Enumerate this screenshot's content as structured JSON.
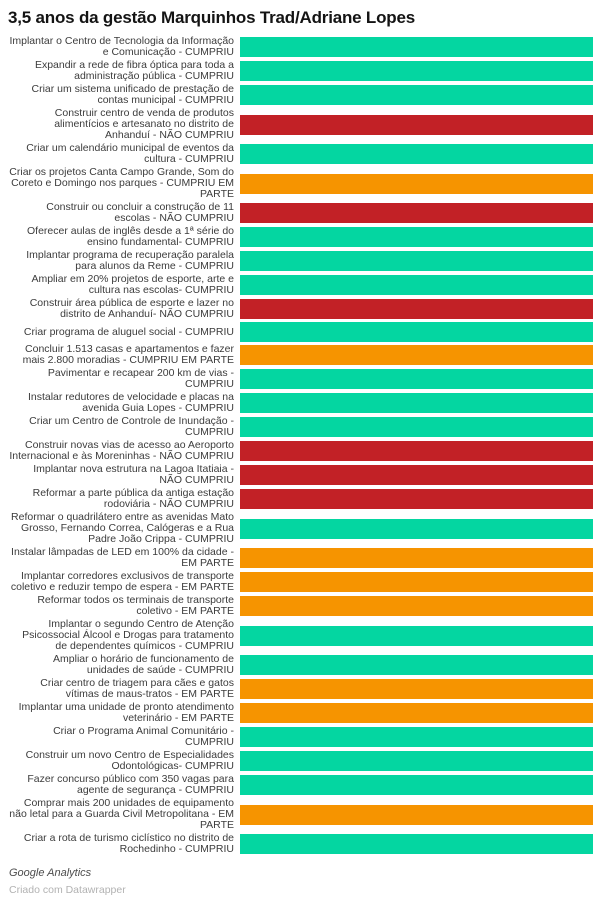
{
  "title": "3,5 anos da gestão Marquinhos Trad/Adriane Lopes",
  "footer": {
    "byline": "Google Analytics",
    "credit": "Criado com Datawrapper"
  },
  "status_colors": {
    "cumpriu": "#04d6a1",
    "nao_cumpriu": "#c22126",
    "em_parte": "#f69400"
  },
  "chart_data": {
    "type": "bar",
    "orientation": "horizontal",
    "title": "3,5 anos da gestão Marquinhos Trad/Adriane Lopes",
    "value_encoding": "all 32 bars span the full axis width; bar color encodes the status stated at the end of each label (green = CUMPRIU, red = NÃO CUMPRIU, orange = EM PARTE / CUMPRIU EM PARTE)",
    "legend_position": "none",
    "grid": false,
    "items": [
      {
        "label": "Implantar o Centro de Tecnologia da Informação e Comunicação - CUMPRIU",
        "status": "cumpriu",
        "value": 1
      },
      {
        "label": "Expandir a rede de fibra óptica para toda a administração pública - CUMPRIU",
        "status": "cumpriu",
        "value": 1
      },
      {
        "label": "Criar um sistema unificado de prestação de contas municipal - CUMPRIU",
        "status": "cumpriu",
        "value": 1
      },
      {
        "label": "Construir centro de venda de produtos alimentícios e artesanato no distrito de Anhanduí - NÃO CUMPRIU",
        "status": "nao_cumpriu",
        "value": 1
      },
      {
        "label": "Criar um calendário municipal de eventos da cultura - CUMPRIU",
        "status": "cumpriu",
        "value": 1
      },
      {
        "label": "Criar os projetos Canta Campo Grande, Som do Coreto e Domingo nos parques - CUMPRIU EM PARTE",
        "status": "em_parte",
        "value": 1
      },
      {
        "label": "Construir ou concluir a construção de 11 escolas - NÃO CUMPRIU",
        "status": "nao_cumpriu",
        "value": 1
      },
      {
        "label": "Oferecer aulas de inglês desde a 1ª série do ensino fundamental- CUMPRIU",
        "status": "cumpriu",
        "value": 1
      },
      {
        "label": "Implantar programa de recuperação paralela para alunos da Reme - CUMPRIU",
        "status": "cumpriu",
        "value": 1
      },
      {
        "label": "Ampliar em 20% projetos de esporte, arte e cultura nas escolas- CUMPRIU",
        "status": "cumpriu",
        "value": 1
      },
      {
        "label": "Construir área pública de esporte e lazer no distrito de Anhanduí- NÃO CUMPRIU",
        "status": "nao_cumpriu",
        "value": 1
      },
      {
        "label": "Criar programa de aluguel social - CUMPRIU",
        "status": "cumpriu",
        "value": 1
      },
      {
        "label": "Concluir 1.513 casas e apartamentos e fazer mais 2.800 moradias - CUMPRIU EM PARTE",
        "status": "em_parte",
        "value": 1
      },
      {
        "label": "Pavimentar e recapear 200 km de vias - CUMPRIU",
        "status": "cumpriu",
        "value": 1
      },
      {
        "label": "Instalar redutores de velocidade e placas na avenida Guia Lopes - CUMPRIU",
        "status": "cumpriu",
        "value": 1
      },
      {
        "label": "Criar um Centro de Controle de Inundação - CUMPRIU",
        "status": "cumpriu",
        "value": 1
      },
      {
        "label": "Construir novas vias de acesso ao Aeroporto Internacional e às Moreninhas - NÃO CUMPRIU",
        "status": "nao_cumpriu",
        "value": 1
      },
      {
        "label": "Implantar nova estrutura na Lagoa Itatiaia - NÃO CUMPRIU",
        "status": "nao_cumpriu",
        "value": 1
      },
      {
        "label": "Reformar a parte pública da antiga estação rodoviária - NÃO CUMPRIU",
        "status": "nao_cumpriu",
        "value": 1
      },
      {
        "label": "Reformar o quadrilátero entre as avenidas Mato Grosso, Fernando Correa, Calógeras e a Rua Padre João Crippa - CUMPRIU",
        "status": "cumpriu",
        "value": 1
      },
      {
        "label": "Instalar lâmpadas de LED em 100% da cidade - EM PARTE",
        "status": "em_parte",
        "value": 1
      },
      {
        "label": "Implantar corredores exclusivos de transporte coletivo e reduzir tempo de espera - EM PARTE",
        "status": "em_parte",
        "value": 1
      },
      {
        "label": "Reformar todos os terminais de transporte coletivo - EM PARTE",
        "status": "em_parte",
        "value": 1
      },
      {
        "label": "Implantar o segundo Centro de Atenção Psicossocial Álcool e Drogas para tratamento de dependentes químicos - CUMPRIU",
        "status": "cumpriu",
        "value": 1
      },
      {
        "label": "Ampliar o horário de funcionamento de unidades de saúde - CUMPRIU",
        "status": "cumpriu",
        "value": 1
      },
      {
        "label": "Criar centro de triagem para cães e gatos vítimas de maus-tratos - EM PARTE",
        "status": "em_parte",
        "value": 1
      },
      {
        "label": "Implantar uma unidade de pronto atendimento veterinário - EM PARTE",
        "status": "em_parte",
        "value": 1
      },
      {
        "label": "Criar o Programa Animal Comunitário - CUMPRIU",
        "status": "cumpriu",
        "value": 1
      },
      {
        "label": "Construir um novo Centro de Especialidades Odontológicas- CUMPRIU",
        "status": "cumpriu",
        "value": 1
      },
      {
        "label": "Fazer concurso público com 350 vagas para agente de segurança - CUMPRIU",
        "status": "cumpriu",
        "value": 1
      },
      {
        "label": "Comprar mais 200 unidades de equipamento não letal para a Guarda Civil Metropolitana - EM PARTE",
        "status": "em_parte",
        "value": 1
      },
      {
        "label": "Criar a rota de turismo ciclístico no distrito de Rochedinho - CUMPRIU",
        "status": "cumpriu",
        "value": 1
      }
    ]
  }
}
